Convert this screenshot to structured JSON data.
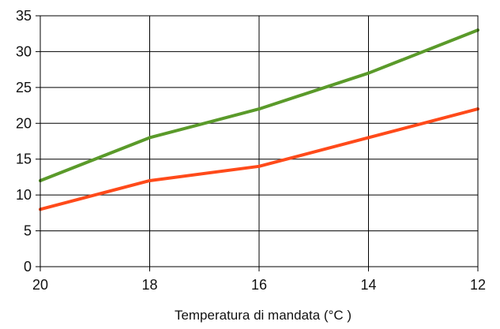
{
  "chart_data": {
    "type": "line",
    "xlabel": "Temperatura di mandata (°C )",
    "ylabel": "",
    "x": [
      20,
      18,
      16,
      14,
      12
    ],
    "x_ticks": [
      "20",
      "18",
      "16",
      "14",
      "12"
    ],
    "y_ticks": [
      "0",
      "5",
      "10",
      "15",
      "20",
      "25",
      "30",
      "35"
    ],
    "xlim": [
      20,
      12
    ],
    "ylim": [
      0,
      35
    ],
    "x_reversed": true,
    "grid": true,
    "legend": "none",
    "series": [
      {
        "color": "#5a9a2a",
        "values": [
          12,
          18,
          22,
          27,
          33
        ]
      },
      {
        "color": "#ff4a1a",
        "values": [
          8,
          12,
          14,
          18,
          22
        ]
      }
    ]
  }
}
